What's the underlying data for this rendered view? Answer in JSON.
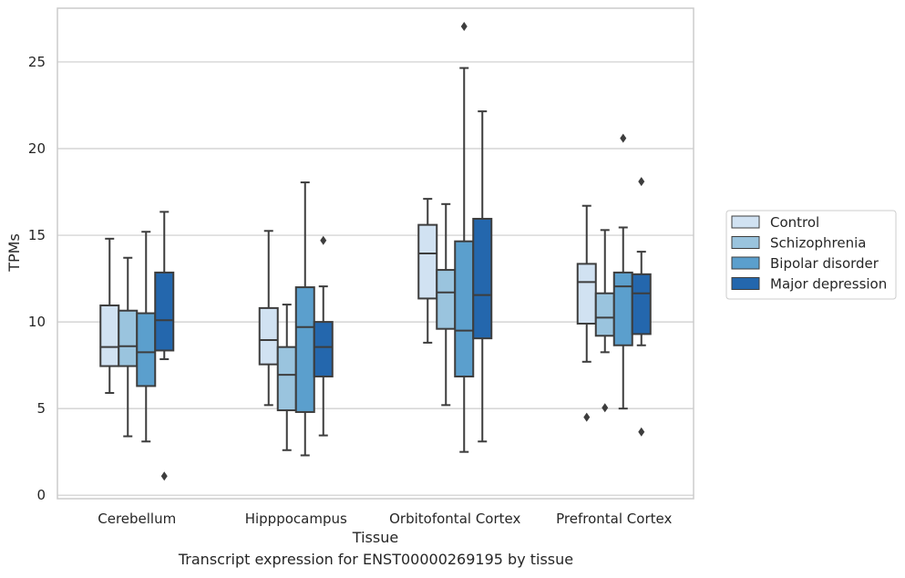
{
  "chart_data": {
    "type": "box",
    "title": "",
    "caption": "Transcript expression for ENST00000269195 by tissue",
    "xlabel": "Tissue",
    "ylabel": "TPMs",
    "ylim": [
      -0.2,
      28.1
    ],
    "yticks": [
      0,
      5,
      10,
      15,
      20,
      25
    ],
    "grid": "horizontal",
    "legend_position": "right",
    "categories": [
      "Cerebellum",
      "Hipppocampus",
      "Orbitofontal Cortex",
      "Prefrontal Cortex"
    ],
    "series": [
      {
        "name": "Control",
        "color": "#d1e2f2",
        "boxes": [
          {
            "whisker_low": 5.9,
            "q1": 7.45,
            "median": 8.55,
            "q3": 10.95,
            "whisker_high": 14.8,
            "outliers": []
          },
          {
            "whisker_low": 5.2,
            "q1": 7.55,
            "median": 8.95,
            "q3": 10.8,
            "whisker_high": 15.25,
            "outliers": []
          },
          {
            "whisker_low": 8.8,
            "q1": 11.35,
            "median": 13.95,
            "q3": 15.6,
            "whisker_high": 17.1,
            "outliers": []
          },
          {
            "whisker_low": 7.7,
            "q1": 9.9,
            "median": 12.3,
            "q3": 13.35,
            "whisker_high": 16.7,
            "outliers": [
              4.5
            ]
          }
        ]
      },
      {
        "name": "Schizophrenia",
        "color": "#9ac4de",
        "boxes": [
          {
            "whisker_low": 3.4,
            "q1": 7.45,
            "median": 8.6,
            "q3": 10.65,
            "whisker_high": 13.7,
            "outliers": []
          },
          {
            "whisker_low": 2.6,
            "q1": 4.9,
            "median": 6.95,
            "q3": 8.55,
            "whisker_high": 11.0,
            "outliers": []
          },
          {
            "whisker_low": 5.2,
            "q1": 9.6,
            "median": 11.7,
            "q3": 13.0,
            "whisker_high": 16.8,
            "outliers": []
          },
          {
            "whisker_low": 8.25,
            "q1": 9.2,
            "median": 10.25,
            "q3": 11.65,
            "whisker_high": 15.3,
            "outliers": [
              5.05
            ]
          }
        ]
      },
      {
        "name": "Bipolar disorder",
        "color": "#5b9fcd",
        "boxes": [
          {
            "whisker_low": 3.1,
            "q1": 6.3,
            "median": 8.25,
            "q3": 10.5,
            "whisker_high": 15.2,
            "outliers": []
          },
          {
            "whisker_low": 2.3,
            "q1": 4.8,
            "median": 9.7,
            "q3": 12.0,
            "whisker_high": 18.05,
            "outliers": []
          },
          {
            "whisker_low": 2.5,
            "q1": 6.85,
            "median": 9.5,
            "q3": 14.65,
            "whisker_high": 24.65,
            "outliers": [
              27.05
            ]
          },
          {
            "whisker_low": 5.0,
            "q1": 8.65,
            "median": 12.05,
            "q3": 12.85,
            "whisker_high": 15.45,
            "outliers": [
              20.6
            ]
          }
        ]
      },
      {
        "name": "Major depression",
        "color": "#2467ad",
        "boxes": [
          {
            "whisker_low": 7.85,
            "q1": 8.35,
            "median": 10.1,
            "q3": 12.85,
            "whisker_high": 16.35,
            "outliers": [
              1.1
            ]
          },
          {
            "whisker_low": 3.45,
            "q1": 6.85,
            "median": 8.55,
            "q3": 10.0,
            "whisker_high": 12.05,
            "outliers": [
              14.7
            ]
          },
          {
            "whisker_low": 3.1,
            "q1": 9.05,
            "median": 11.55,
            "q3": 15.95,
            "whisker_high": 22.15,
            "outliers": []
          },
          {
            "whisker_low": 8.65,
            "q1": 9.3,
            "median": 11.65,
            "q3": 12.75,
            "whisker_high": 14.05,
            "outliers": [
              3.65,
              18.1
            ]
          }
        ]
      }
    ]
  }
}
